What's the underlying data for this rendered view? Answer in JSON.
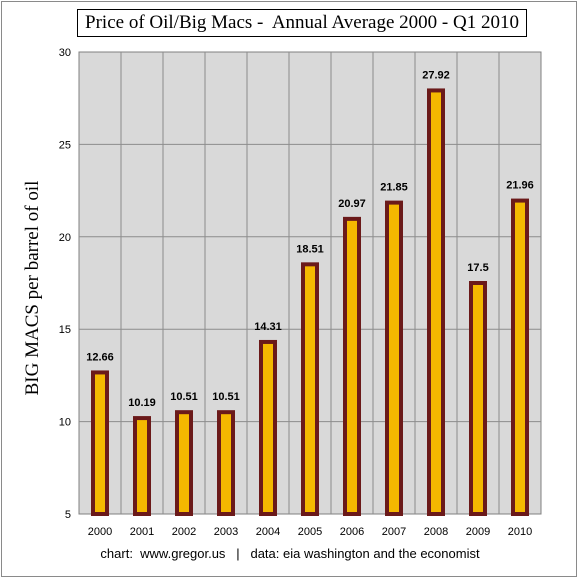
{
  "chart_data": {
    "type": "bar",
    "title": "Price of Oil/Big Macs -  Annual Average 2000 - Q1 2010",
    "ylabel": "BIG MACS per barrel of oil",
    "xlabel": "",
    "ylim": [
      5,
      30
    ],
    "yticks": [
      5,
      10,
      15,
      20,
      25,
      30
    ],
    "grid": true,
    "categories": [
      "2000",
      "2001",
      "2002",
      "2003",
      "2004",
      "2005",
      "2006",
      "2007",
      "2008",
      "2009",
      "2010"
    ],
    "values": [
      12.66,
      10.19,
      10.51,
      10.51,
      14.31,
      18.51,
      20.97,
      21.85,
      27.92,
      17.5,
      21.96
    ],
    "data_labels": [
      "12.66",
      "10.19",
      "10.51",
      "10.51",
      "14.31",
      "18.51",
      "20.97",
      "21.85",
      "27.92",
      "17.5",
      "21.96"
    ],
    "colors": {
      "bar_fill": "#F5B800",
      "bar_border": "#6B1A1A",
      "plot_background": "#D9D9D9",
      "grid": "#8C8C8C"
    }
  },
  "footer": "chart:  www.gregor.us   |   data: eia washington and the economist"
}
